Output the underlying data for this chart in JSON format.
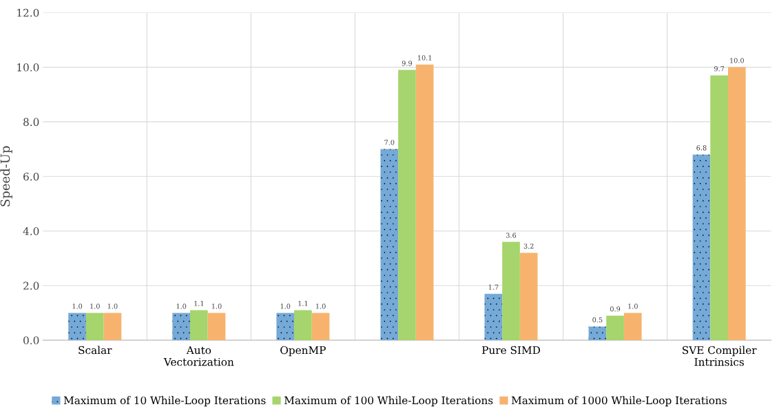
{
  "chart_data": {
    "type": "bar",
    "ylabel": "Speed-Up",
    "categories": [
      "Scalar",
      "Auto\nVectorization",
      "OpenMP",
      null,
      "Pure SIMD",
      null,
      "SVE Compiler\nIntrinsics"
    ],
    "series": [
      {
        "name": "Maximum of 10 While-Loop Iterations",
        "color": "#74a9d8",
        "values": [
          1.0,
          1.0,
          1.0,
          7.0,
          1.7,
          0.5,
          6.8
        ],
        "value_labels": [
          "1.0",
          "1.0",
          "1.0",
          "7.0",
          "1.7",
          "0.5",
          "6.8"
        ]
      },
      {
        "name": "Maximum of 100 While-Loop Iterations",
        "color": "#a5d56c",
        "values": [
          1.0,
          1.1,
          1.1,
          9.9,
          3.6,
          0.9,
          9.7
        ],
        "value_labels": [
          "1.0",
          "1.1",
          "1.1",
          "9.9",
          "3.6",
          "0.9",
          "9.7"
        ]
      },
      {
        "name": "Maximum of 1000 While-Loop Iterations",
        "color": "#f7b36e",
        "values": [
          1.0,
          1.0,
          1.0,
          10.1,
          3.2,
          1.0,
          10.0
        ],
        "value_labels": [
          "1.0",
          "1.0",
          "1.0",
          "10.1",
          "3.2",
          "1.0",
          "10.0"
        ]
      }
    ],
    "ylim": [
      0,
      12
    ],
    "yticks": [
      {
        "value": 0,
        "label": "0.0"
      },
      {
        "value": 2,
        "label": "2.0"
      },
      {
        "value": 4,
        "label": "4.0"
      },
      {
        "value": 6,
        "label": "6.0"
      },
      {
        "value": 8,
        "label": "8.0"
      },
      {
        "value": 10,
        "label": "10.0"
      },
      {
        "value": 12,
        "label": "12.0"
      }
    ],
    "grid": true,
    "legend": "bottom"
  }
}
